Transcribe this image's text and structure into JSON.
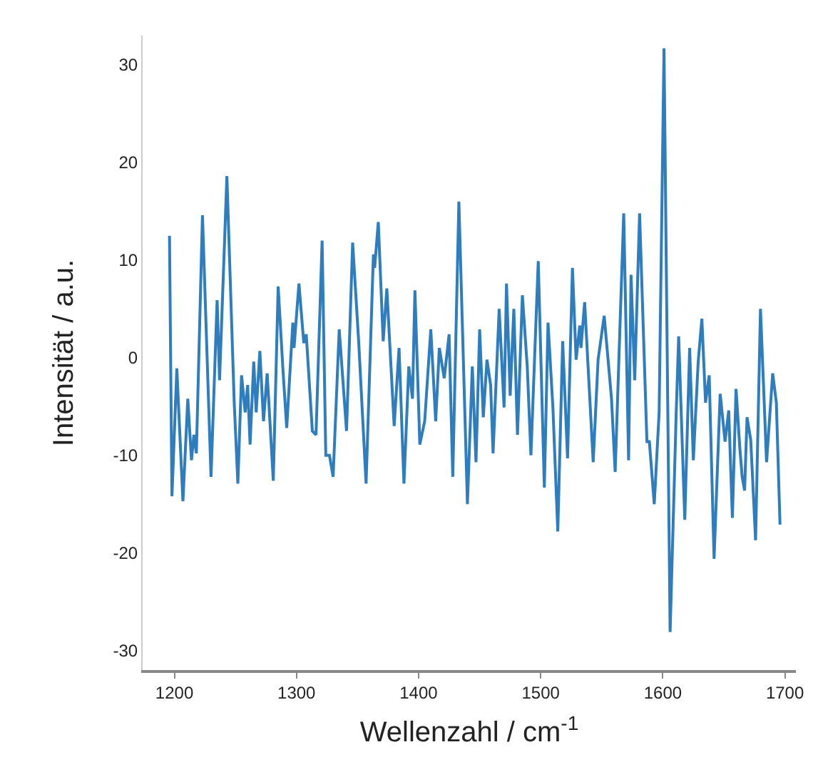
{
  "chart_data": {
    "type": "line",
    "xlabel": "Wellenzahl / cm$^{-1}$",
    "ylabel": "Intensität / a.u.",
    "xlim": [
      1174,
      1709
    ],
    "ylim": [
      -32,
      33
    ],
    "xticks": [
      1200,
      1300,
      1400,
      1500,
      1600,
      1700
    ],
    "yticks": [
      -30,
      -20,
      -10,
      0,
      10,
      20,
      30
    ],
    "grid": false,
    "marker": "none",
    "line_style": "solid",
    "x": [
      1196,
      1198,
      1202,
      1207,
      1211,
      1214,
      1216,
      1218,
      1223,
      1230,
      1235,
      1237,
      1243,
      1249,
      1252,
      1255,
      1258,
      1260,
      1262,
      1265,
      1267,
      1270,
      1273,
      1276,
      1281,
      1285,
      1289,
      1292,
      1297,
      1298,
      1302,
      1306,
      1308,
      1313,
      1316,
      1321,
      1324,
      1327,
      1330,
      1335,
      1341,
      1346,
      1351,
      1357,
      1363,
      1364,
      1367,
      1371,
      1374,
      1380,
      1384,
      1388,
      1392,
      1395,
      1397,
      1401,
      1405,
      1410,
      1414,
      1417,
      1421,
      1425,
      1428,
      1433,
      1440,
      1444,
      1447,
      1450,
      1453,
      1456,
      1459,
      1461,
      1466,
      1470,
      1472,
      1475,
      1478,
      1481,
      1485,
      1489,
      1492,
      1498,
      1503,
      1506,
      1510,
      1514,
      1518,
      1522,
      1526,
      1529,
      1532,
      1533,
      1536,
      1543,
      1547,
      1552,
      1558,
      1561,
      1568,
      1572,
      1574,
      1577,
      1581,
      1587,
      1589,
      1593,
      1597,
      1601,
      1606,
      1611,
      1613,
      1618,
      1622,
      1625,
      1629,
      1632,
      1635,
      1638,
      1642,
      1647,
      1651,
      1654,
      1657,
      1660,
      1663,
      1665,
      1667,
      1669,
      1672,
      1676,
      1680,
      1685,
      1690,
      1693,
      1696
    ],
    "series": [
      {
        "color": "#2e7dbf",
        "values": [
          12.5,
          -14.2,
          -1.1,
          -14.7,
          -4.2,
          -10.5,
          -7.9,
          -9.8,
          14.6,
          -12.2,
          5.9,
          -2.3,
          18.6,
          -4.6,
          -12.9,
          -1.8,
          -5.6,
          -2.8,
          -8.9,
          -0.4,
          -5.6,
          0.7,
          -6.5,
          -1.6,
          -12.6,
          7.3,
          -1.4,
          -7.2,
          3.6,
          1.0,
          7.6,
          1.5,
          2.4,
          -7.5,
          -7.9,
          12.0,
          -10.0,
          -10.0,
          -12.2,
          2.9,
          -7.5,
          11.8,
          1.5,
          -12.9,
          10.6,
          9.2,
          13.9,
          1.7,
          7.1,
          -7.0,
          1.0,
          -12.9,
          -0.9,
          -4.2,
          6.9,
          -8.9,
          -6.5,
          2.9,
          -6.5,
          1.0,
          -2.1,
          2.4,
          -12.2,
          16.0,
          -15.0,
          -0.9,
          -10.7,
          2.9,
          -6.1,
          -0.2,
          -2.8,
          -9.8,
          5.0,
          -5.1,
          7.6,
          -3.9,
          5.0,
          -7.9,
          6.4,
          -0.9,
          -10.0,
          9.9,
          -13.3,
          3.6,
          -5.1,
          -17.8,
          1.7,
          -10.3,
          9.2,
          -0.2,
          3.3,
          1.0,
          5.7,
          -10.7,
          -0.2,
          4.3,
          -4.2,
          -11.7,
          14.8,
          -10.5,
          8.5,
          -2.3,
          14.8,
          -8.6,
          -8.6,
          -15.0,
          -5.6,
          31.7,
          -28.1,
          -5.6,
          2.2,
          -16.6,
          1.0,
          -10.5,
          -0.4,
          4.0,
          -4.6,
          -1.8,
          -20.6,
          -3.7,
          -8.6,
          -5.4,
          -16.4,
          -3.2,
          -9.1,
          -12.2,
          -13.6,
          -6.1,
          -8.4,
          -18.7,
          5.0,
          -10.7,
          -1.6,
          -4.6,
          -17.1
        ]
      }
    ]
  }
}
